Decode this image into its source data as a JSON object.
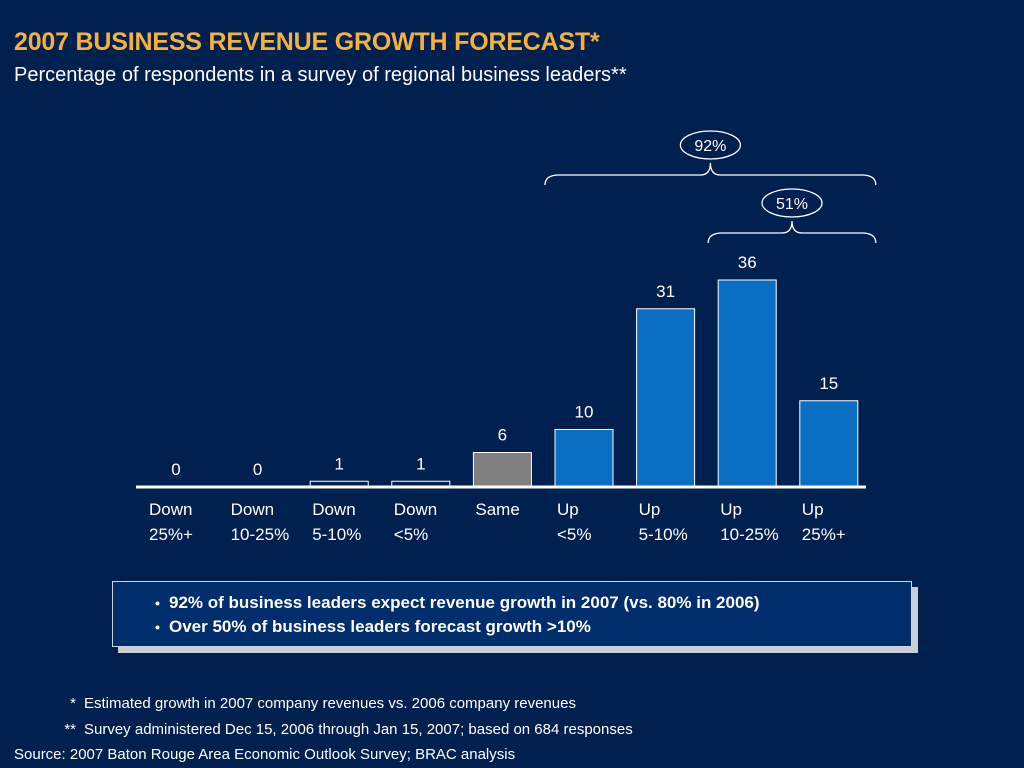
{
  "header": {
    "title": "2007 BUSINESS REVENUE GROWTH FORECAST*",
    "subtitle": "Percentage of respondents in a survey of regional business leaders**"
  },
  "chart_data": {
    "type": "bar",
    "categories": [
      [
        "Down",
        "25%+"
      ],
      [
        "Down",
        "10-25%"
      ],
      [
        "Down",
        "5-10%"
      ],
      [
        "Down",
        "<5%"
      ],
      [
        "Same",
        ""
      ],
      [
        "Up",
        "<5%"
      ],
      [
        "Up",
        "5-10%"
      ],
      [
        "Up",
        "10-25%"
      ],
      [
        "Up",
        "25%+"
      ]
    ],
    "values": [
      0,
      0,
      1,
      1,
      6,
      10,
      31,
      36,
      15
    ],
    "data_labels": [
      "0",
      "0",
      "1",
      "1",
      "6",
      "10",
      "31",
      "36",
      "15"
    ],
    "bar_colors": [
      "#002050",
      "#002050",
      "#002050",
      "#002050",
      "#808080",
      "#0a6ec2",
      "#0a6ec2",
      "#0a6ec2",
      "#0a6ec2"
    ],
    "ylim": [
      0,
      36
    ],
    "grid": false,
    "annotations": [
      {
        "label": "92%",
        "span": [
          5,
          8
        ]
      },
      {
        "label": "51%",
        "span": [
          7,
          8
        ]
      }
    ]
  },
  "callout": {
    "bullets": [
      "92% of business leaders expect revenue growth in 2007 (vs. 80% in 2006)",
      "Over 50% of business leaders forecast growth >10%"
    ]
  },
  "footnotes": [
    {
      "mark": "*",
      "text": "Estimated growth in 2007 company revenues vs. 2006 company revenues"
    },
    {
      "mark": "**",
      "text": "Survey administered Dec 15, 2006 through Jan 15, 2007; based on 684 responses"
    }
  ],
  "source": "Source: 2007 Baton Rouge Area Economic Outlook Survey; BRAC analysis",
  "colors": {
    "background": "#002050",
    "title": "#f5b13d",
    "up_bar": "#0a6ec2",
    "same_bar": "#808080",
    "callout_bg": "#002d6c"
  }
}
